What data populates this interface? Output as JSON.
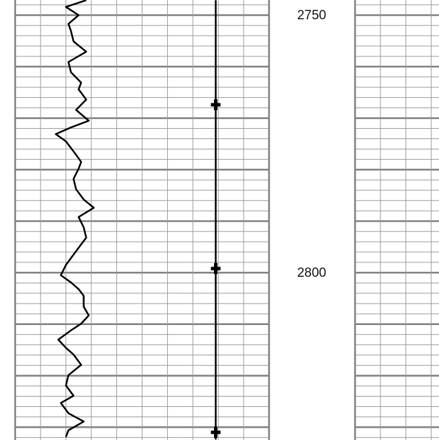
{
  "chart_data": {
    "type": "well-log",
    "ylim": [
      2747.06,
      2832.49
    ],
    "yticks": [
      2750,
      2800
    ],
    "major_grid": [
      2750,
      2760,
      2770,
      2780,
      2790,
      2800,
      2810,
      2820,
      2830
    ],
    "minor_grid": [
      2748,
      2750,
      2752,
      2754,
      2756,
      2758,
      2760,
      2762,
      2764,
      2766,
      2768,
      2770,
      2772,
      2774,
      2776,
      2778,
      2780,
      2782,
      2784,
      2786,
      2788,
      2790,
      2792,
      2794,
      2796,
      2798,
      2800,
      2802,
      2804,
      2806,
      2808,
      2810,
      2812,
      2814,
      2816,
      2818,
      2820,
      2822,
      2824,
      2826,
      2828,
      2830,
      2832
    ],
    "tracks": [
      {
        "xlim": [
          0,
          10
        ],
        "xticks": [
          0,
          1,
          2,
          3,
          4,
          5,
          6,
          7,
          8,
          9,
          10
        ],
        "series": [
          {
            "color": "#000000",
            "depths": [
              2747.1,
              2748.4,
              2750,
              2751.7,
              2753.1,
              2755.1,
              2757.1,
              2759.1,
              2761.1,
              2763.1,
              2764.4,
              2766.4,
              2768.4,
              2770.5,
              2771.8,
              2773.1,
              2774.5,
              2775.8,
              2777.1,
              2778.5,
              2779.8,
              2781.8,
              2783.8,
              2785.8,
              2787.4,
              2789.2,
              2791.2,
              2793.2,
              2794.5,
              2796.5,
              2798.5,
              2800.5,
              2801.9,
              2803.2,
              2804.5,
              2806.6,
              2808.3,
              2809.9,
              2811.2,
              2813,
              2814.6,
              2815.9,
              2817.9,
              2819.9,
              2821.9,
              2823.9,
              2825.3,
              2827.3,
              2828.9,
              2830.6,
              2831.9
            ],
            "values": [
              2.8,
              2.0,
              2.5,
              2.1,
              2.2,
              2.3,
              2.8,
              2.1,
              2.2,
              2.6,
              2.5,
              2.8,
              2.4,
              2.9,
              2.2,
              1.6,
              2.0,
              2.2,
              2.4,
              2.6,
              2.5,
              2.3,
              2.4,
              2.7,
              3.1,
              2.5,
              2.7,
              2.8,
              2.6,
              2.3,
              2.0,
              1.8,
              2.2,
              2.5,
              2.7,
              2.7,
              2.9,
              2.6,
              2.2,
              1.7,
              2.0,
              2.3,
              2.6,
              2.1,
              2.0,
              2.3,
              1.8,
              2.1,
              2.7,
              2.1,
              2.0
            ]
          },
          {
            "color": "#000000",
            "depths": [
              2747.1,
              2767.4,
              2799.2,
              2831,
              2832.4
            ],
            "values": [
              7.9,
              7.9,
              7.9,
              7.9,
              7.9
            ],
            "marker_depths": [
              2767.4,
              2799.2,
              2831
            ]
          }
        ]
      },
      {
        "xlim": [
          0,
          10
        ],
        "xticks": [
          0,
          1,
          2,
          3,
          4,
          5,
          6,
          7,
          8,
          9,
          10
        ],
        "series": []
      }
    ]
  }
}
